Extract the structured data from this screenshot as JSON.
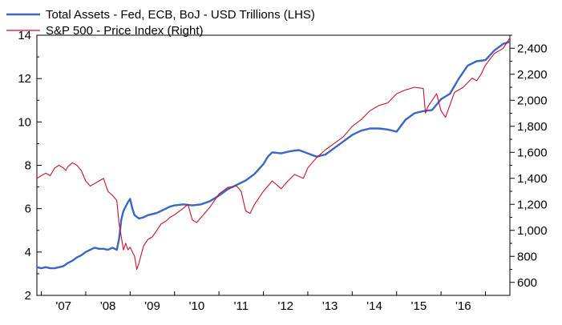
{
  "chart_data": {
    "type": "line",
    "legend": {
      "position": "top-left",
      "entries": [
        {
          "label": "Total Assets - Fed, ECB, BoJ - USD Trillions (LHS)",
          "color": "#3a67c4"
        },
        {
          "label": "S&P 500 - Price Index (Right)",
          "color": "#c8102e"
        }
      ]
    },
    "x_tick_labels": [
      "'07",
      "'08",
      "'09",
      "'10",
      "'11",
      "'12",
      "'13",
      "'14",
      "'15",
      "'16"
    ],
    "x_range": [
      2006.9,
      2017.55
    ],
    "left_axis": {
      "range": [
        2,
        14
      ],
      "tick_labels": [
        "2",
        "4",
        "6",
        "8",
        "10",
        "12",
        "14"
      ]
    },
    "right_axis": {
      "range": [
        500,
        2500
      ],
      "tick_labels": [
        "600",
        "800",
        "1,000",
        "1,200",
        "1,400",
        "1,600",
        "1,800",
        "2,000",
        "2,200",
        "2,400"
      ]
    },
    "grid": false,
    "series": [
      {
        "name": "Total Assets - Fed, ECB, BoJ - USD Trillions (LHS)",
        "axis": "left",
        "color": "#3a67c4",
        "points": [
          [
            2006.9,
            3.3
          ],
          [
            2007.0,
            3.25
          ],
          [
            2007.1,
            3.3
          ],
          [
            2007.2,
            3.25
          ],
          [
            2007.3,
            3.25
          ],
          [
            2007.4,
            3.3
          ],
          [
            2007.5,
            3.35
          ],
          [
            2007.6,
            3.5
          ],
          [
            2007.7,
            3.6
          ],
          [
            2007.8,
            3.75
          ],
          [
            2007.9,
            3.85
          ],
          [
            2008.0,
            4.0
          ],
          [
            2008.1,
            4.1
          ],
          [
            2008.2,
            4.2
          ],
          [
            2008.3,
            4.15
          ],
          [
            2008.4,
            4.15
          ],
          [
            2008.5,
            4.1
          ],
          [
            2008.6,
            4.2
          ],
          [
            2008.7,
            4.1
          ],
          [
            2008.75,
            4.6
          ],
          [
            2008.8,
            5.5
          ],
          [
            2008.85,
            5.9
          ],
          [
            2008.9,
            6.1
          ],
          [
            2008.95,
            6.3
          ],
          [
            2009.0,
            6.45
          ],
          [
            2009.05,
            6.0
          ],
          [
            2009.1,
            5.7
          ],
          [
            2009.2,
            5.55
          ],
          [
            2009.3,
            5.6
          ],
          [
            2009.4,
            5.7
          ],
          [
            2009.5,
            5.75
          ],
          [
            2009.6,
            5.8
          ],
          [
            2009.7,
            5.9
          ],
          [
            2009.8,
            6.0
          ],
          [
            2009.9,
            6.1
          ],
          [
            2010.0,
            6.15
          ],
          [
            2010.2,
            6.2
          ],
          [
            2010.4,
            6.15
          ],
          [
            2010.6,
            6.2
          ],
          [
            2010.8,
            6.35
          ],
          [
            2011.0,
            6.6
          ],
          [
            2011.2,
            6.9
          ],
          [
            2011.4,
            7.1
          ],
          [
            2011.6,
            7.3
          ],
          [
            2011.8,
            7.6
          ],
          [
            2012.0,
            8.05
          ],
          [
            2012.1,
            8.4
          ],
          [
            2012.2,
            8.6
          ],
          [
            2012.4,
            8.55
          ],
          [
            2012.6,
            8.65
          ],
          [
            2012.8,
            8.7
          ],
          [
            2013.0,
            8.55
          ],
          [
            2013.2,
            8.4
          ],
          [
            2013.4,
            8.5
          ],
          [
            2013.6,
            8.8
          ],
          [
            2013.8,
            9.1
          ],
          [
            2014.0,
            9.4
          ],
          [
            2014.2,
            9.6
          ],
          [
            2014.4,
            9.7
          ],
          [
            2014.6,
            9.7
          ],
          [
            2014.8,
            9.65
          ],
          [
            2015.0,
            9.55
          ],
          [
            2015.2,
            10.1
          ],
          [
            2015.4,
            10.4
          ],
          [
            2015.6,
            10.5
          ],
          [
            2015.8,
            10.55
          ],
          [
            2016.0,
            11.05
          ],
          [
            2016.2,
            11.3
          ],
          [
            2016.4,
            12.0
          ],
          [
            2016.6,
            12.6
          ],
          [
            2016.8,
            12.8
          ],
          [
            2017.0,
            12.85
          ],
          [
            2017.2,
            13.3
          ],
          [
            2017.4,
            13.6
          ],
          [
            2017.55,
            13.7
          ]
        ]
      },
      {
        "name": "S&P 500 - Price Index (Right)",
        "axis": "right",
        "color": "#c8102e",
        "points": [
          [
            2006.9,
            1400
          ],
          [
            2007.0,
            1420
          ],
          [
            2007.1,
            1440
          ],
          [
            2007.2,
            1420
          ],
          [
            2007.3,
            1480
          ],
          [
            2007.4,
            1500
          ],
          [
            2007.5,
            1480
          ],
          [
            2007.55,
            1460
          ],
          [
            2007.6,
            1490
          ],
          [
            2007.7,
            1520
          ],
          [
            2007.8,
            1500
          ],
          [
            2007.9,
            1460
          ],
          [
            2008.0,
            1380
          ],
          [
            2008.1,
            1340
          ],
          [
            2008.2,
            1360
          ],
          [
            2008.3,
            1380
          ],
          [
            2008.4,
            1400
          ],
          [
            2008.5,
            1300
          ],
          [
            2008.6,
            1270
          ],
          [
            2008.7,
            1230
          ],
          [
            2008.75,
            1050
          ],
          [
            2008.8,
            950
          ],
          [
            2008.85,
            850
          ],
          [
            2008.9,
            900
          ],
          [
            2008.95,
            850
          ],
          [
            2009.0,
            870
          ],
          [
            2009.1,
            800
          ],
          [
            2009.15,
            700
          ],
          [
            2009.2,
            750
          ],
          [
            2009.3,
            880
          ],
          [
            2009.4,
            930
          ],
          [
            2009.5,
            950
          ],
          [
            2009.6,
            1000
          ],
          [
            2009.7,
            1050
          ],
          [
            2009.8,
            1070
          ],
          [
            2009.9,
            1100
          ],
          [
            2010.0,
            1120
          ],
          [
            2010.2,
            1170
          ],
          [
            2010.3,
            1200
          ],
          [
            2010.4,
            1080
          ],
          [
            2010.5,
            1060
          ],
          [
            2010.6,
            1100
          ],
          [
            2010.8,
            1180
          ],
          [
            2011.0,
            1280
          ],
          [
            2011.2,
            1330
          ],
          [
            2011.4,
            1340
          ],
          [
            2011.5,
            1300
          ],
          [
            2011.6,
            1150
          ],
          [
            2011.7,
            1130
          ],
          [
            2011.8,
            1200
          ],
          [
            2012.0,
            1300
          ],
          [
            2012.2,
            1380
          ],
          [
            2012.4,
            1320
          ],
          [
            2012.5,
            1360
          ],
          [
            2012.7,
            1430
          ],
          [
            2012.9,
            1400
          ],
          [
            2013.0,
            1480
          ],
          [
            2013.2,
            1560
          ],
          [
            2013.4,
            1620
          ],
          [
            2013.6,
            1670
          ],
          [
            2013.8,
            1720
          ],
          [
            2014.0,
            1800
          ],
          [
            2014.2,
            1850
          ],
          [
            2014.4,
            1920
          ],
          [
            2014.6,
            1960
          ],
          [
            2014.8,
            1980
          ],
          [
            2015.0,
            2050
          ],
          [
            2015.2,
            2080
          ],
          [
            2015.4,
            2100
          ],
          [
            2015.6,
            2090
          ],
          [
            2015.65,
            1900
          ],
          [
            2015.7,
            1950
          ],
          [
            2015.9,
            2050
          ],
          [
            2016.0,
            1920
          ],
          [
            2016.1,
            1870
          ],
          [
            2016.3,
            2060
          ],
          [
            2016.5,
            2100
          ],
          [
            2016.7,
            2170
          ],
          [
            2016.8,
            2150
          ],
          [
            2016.9,
            2200
          ],
          [
            2017.0,
            2270
          ],
          [
            2017.2,
            2360
          ],
          [
            2017.4,
            2400
          ],
          [
            2017.55,
            2480
          ]
        ]
      }
    ]
  }
}
